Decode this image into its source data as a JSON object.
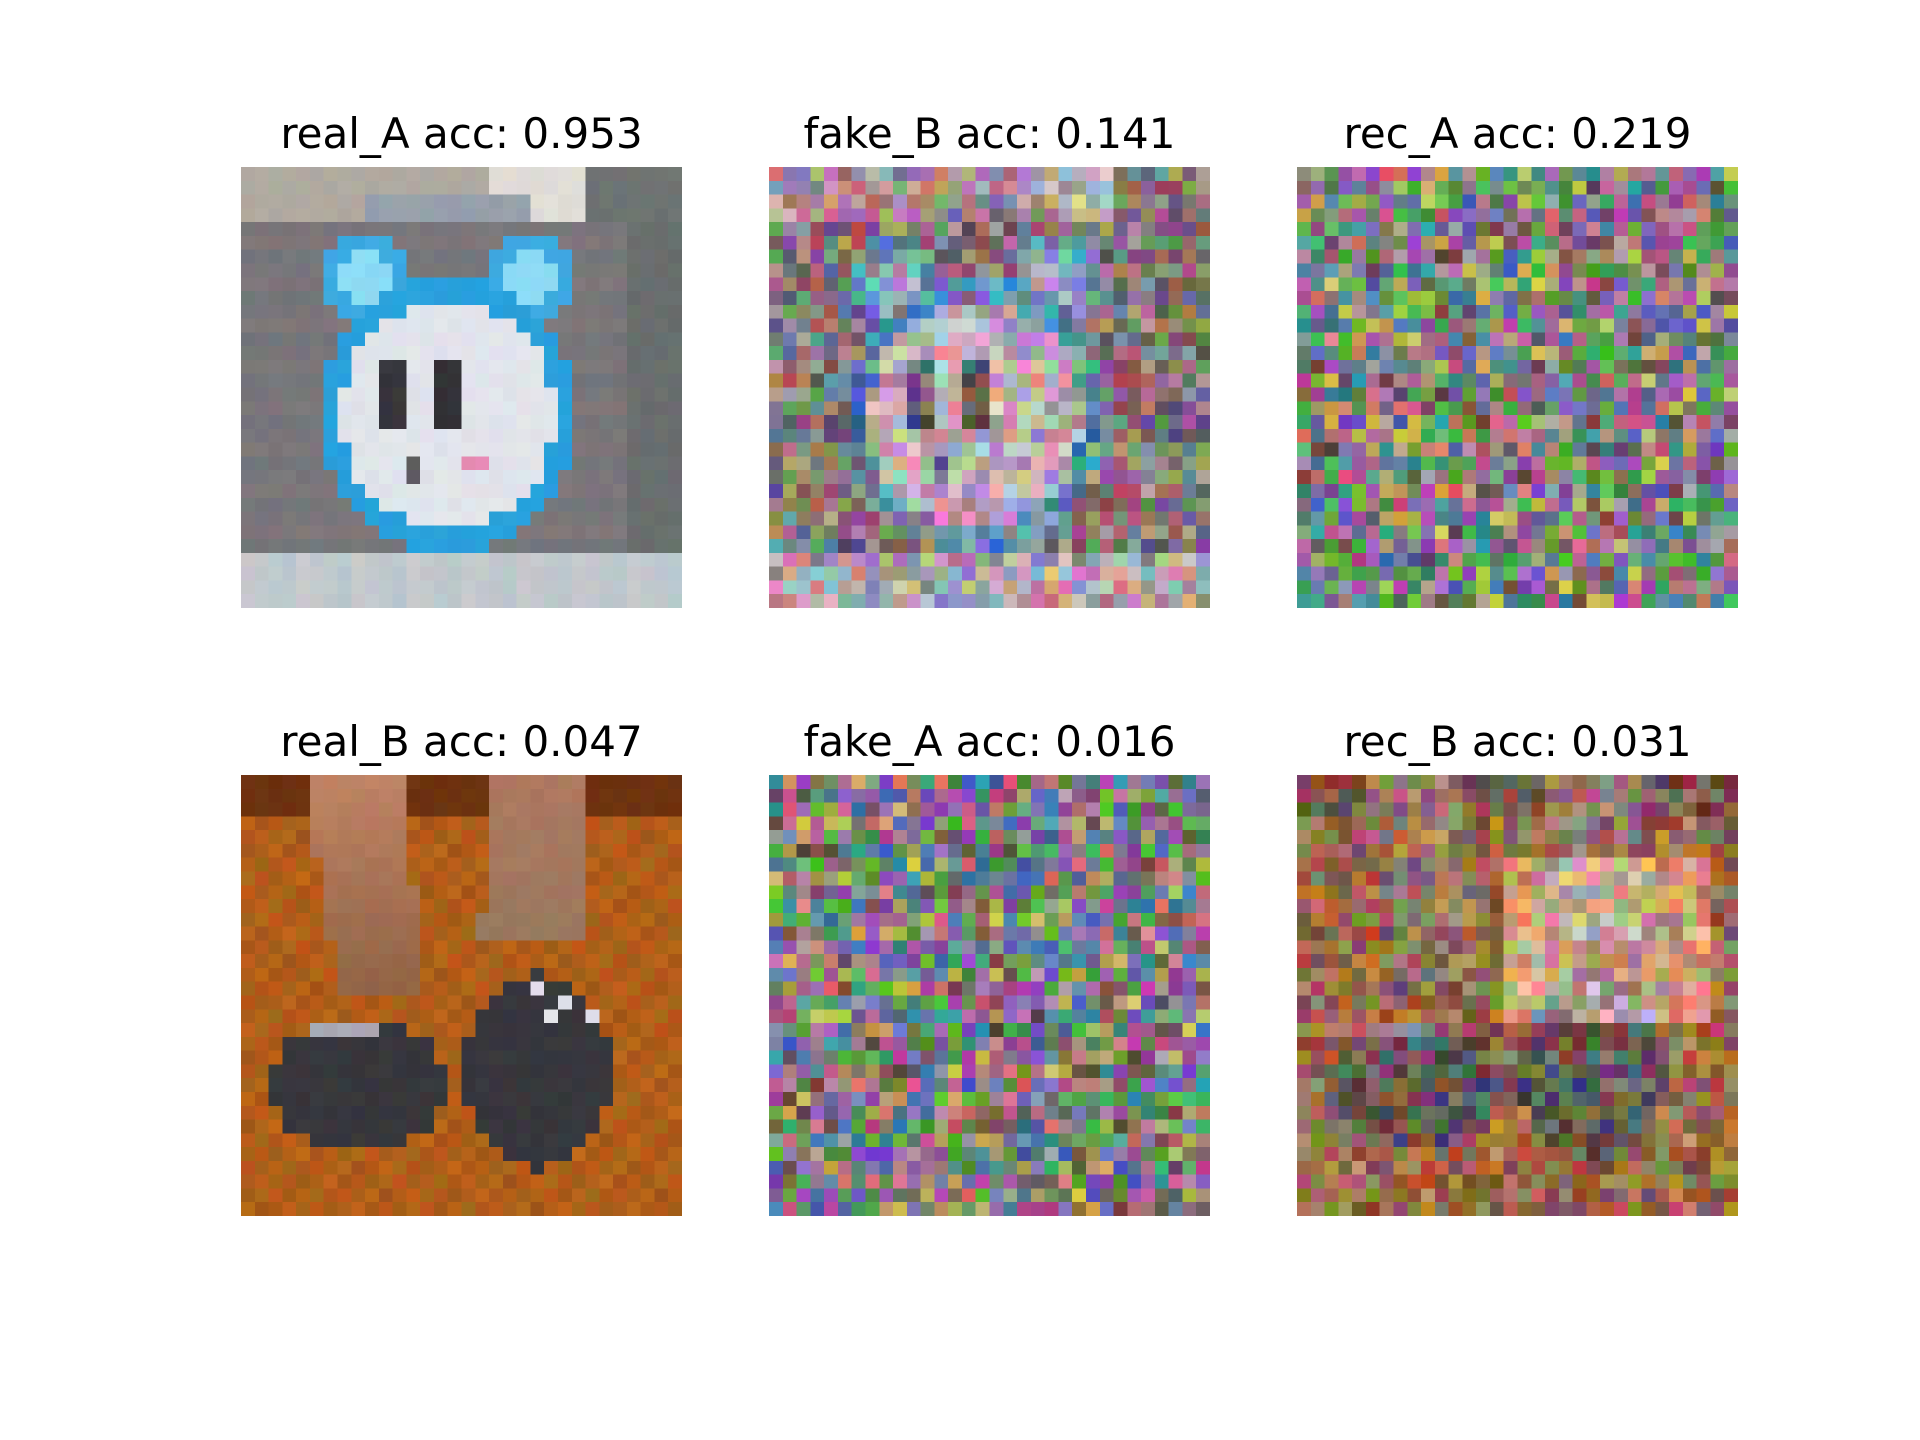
{
  "figure": {
    "panels": [
      {
        "title": "real_A acc: 0.953",
        "kind": "alarm-clock-photo"
      },
      {
        "title": "fake_B acc: 0.141",
        "kind": "noisy-clock-reconstruction"
      },
      {
        "title": "rec_A acc: 0.219",
        "kind": "pixel-noise"
      },
      {
        "title": "real_B acc: 0.047",
        "kind": "sneakers-photo"
      },
      {
        "title": "fake_A acc: 0.016",
        "kind": "pixel-noise"
      },
      {
        "title": "rec_B acc: 0.031",
        "kind": "noisy-sneakers-reconstruction"
      }
    ]
  }
}
